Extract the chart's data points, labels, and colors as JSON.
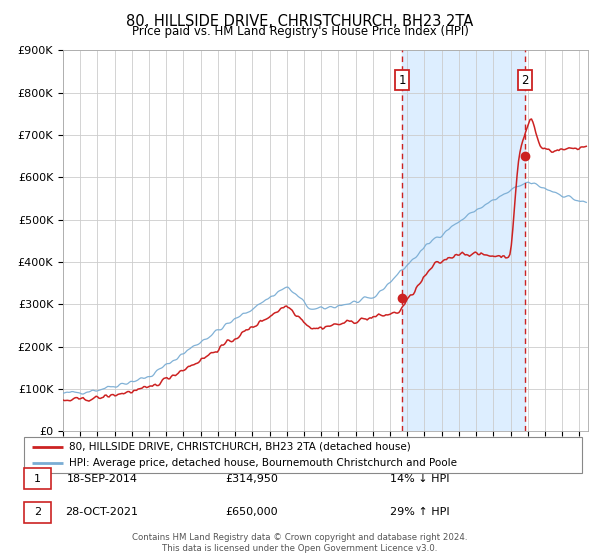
{
  "title": "80, HILLSIDE DRIVE, CHRISTCHURCH, BH23 2TA",
  "subtitle": "Price paid vs. HM Land Registry's House Price Index (HPI)",
  "xlim": [
    1995.0,
    2025.5
  ],
  "ylim": [
    0,
    900000
  ],
  "yticks": [
    0,
    100000,
    200000,
    300000,
    400000,
    500000,
    600000,
    700000,
    800000,
    900000
  ],
  "ytick_labels": [
    "£0",
    "£100K",
    "£200K",
    "£300K",
    "£400K",
    "£500K",
    "£600K",
    "£700K",
    "£800K",
    "£900K"
  ],
  "xticks": [
    1995,
    1996,
    1997,
    1998,
    1999,
    2000,
    2001,
    2002,
    2003,
    2004,
    2005,
    2006,
    2007,
    2008,
    2009,
    2010,
    2011,
    2012,
    2013,
    2014,
    2015,
    2016,
    2017,
    2018,
    2019,
    2020,
    2021,
    2022,
    2023,
    2024,
    2025
  ],
  "hpi_color": "#7aadd4",
  "price_color": "#cc2222",
  "sale1_x": 2014.72,
  "sale1_y": 314950,
  "sale1_label": "1",
  "sale2_x": 2021.83,
  "sale2_y": 650000,
  "sale2_label": "2",
  "vline_color": "#cc2222",
  "shade_color": "#ddeeff",
  "legend_line1": "80, HILLSIDE DRIVE, CHRISTCHURCH, BH23 2TA (detached house)",
  "legend_line2": "HPI: Average price, detached house, Bournemouth Christchurch and Poole",
  "table_row1_num": "1",
  "table_row1_date": "18-SEP-2014",
  "table_row1_price": "£314,950",
  "table_row1_hpi": "14% ↓ HPI",
  "table_row2_num": "2",
  "table_row2_date": "28-OCT-2021",
  "table_row2_price": "£650,000",
  "table_row2_hpi": "29% ↑ HPI",
  "footnote1": "Contains HM Land Registry data © Crown copyright and database right 2024.",
  "footnote2": "This data is licensed under the Open Government Licence v3.0.",
  "bg_color": "#ffffff",
  "grid_color": "#cccccc"
}
